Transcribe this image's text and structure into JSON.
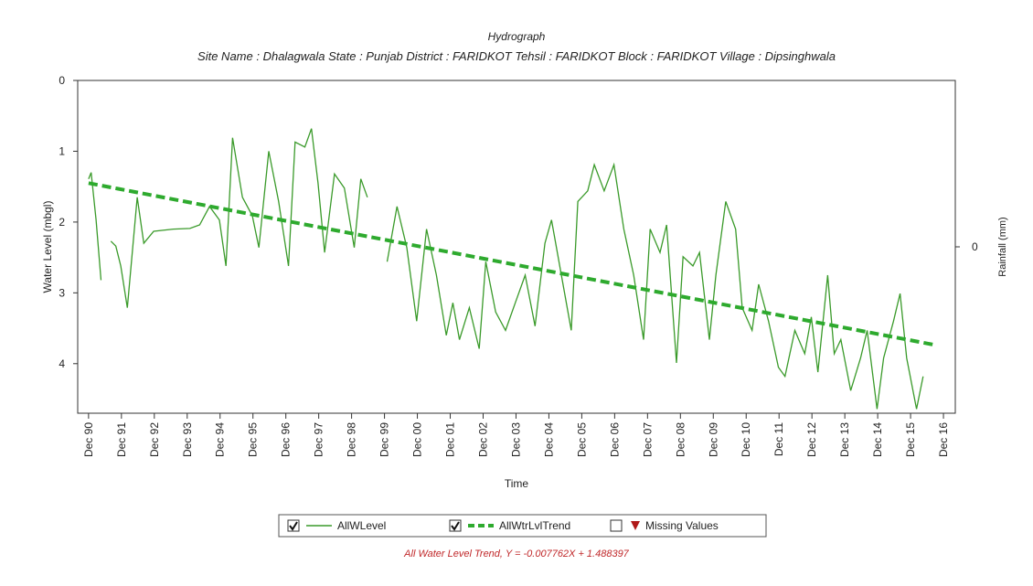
{
  "chart_data": {
    "type": "line",
    "title": "Hydrograph",
    "subtitle": "Site Name : Dhalagwala State : Punjab District : FARIDKOT Tehsil : FARIDKOT Block : FARIDKOT Village : Dipsinghwala",
    "x_label": "Time",
    "y_label": "Water Level (mbgl)",
    "y2_label": "Rainfall (mm)",
    "xlim": [
      1990.59,
      2017.28
    ],
    "xticks": [
      {
        "value": 1990.92,
        "label": "Dec 90"
      },
      {
        "value": 1991.92,
        "label": "Dec 91"
      },
      {
        "value": 1992.92,
        "label": "Dec 92"
      },
      {
        "value": 1993.92,
        "label": "Dec 93"
      },
      {
        "value": 1994.92,
        "label": "Dec 94"
      },
      {
        "value": 1995.92,
        "label": "Dec 95"
      },
      {
        "value": 1996.92,
        "label": "Dec 96"
      },
      {
        "value": 1997.92,
        "label": "Dec 97"
      },
      {
        "value": 1998.92,
        "label": "Dec 98"
      },
      {
        "value": 1999.92,
        "label": "Dec 99"
      },
      {
        "value": 2000.92,
        "label": "Dec 00"
      },
      {
        "value": 2001.92,
        "label": "Dec 01"
      },
      {
        "value": 2002.92,
        "label": "Dec 02"
      },
      {
        "value": 2003.92,
        "label": "Dec 03"
      },
      {
        "value": 2004.92,
        "label": "Dec 04"
      },
      {
        "value": 2005.92,
        "label": "Dec 05"
      },
      {
        "value": 2006.92,
        "label": "Dec 06"
      },
      {
        "value": 2007.92,
        "label": "Dec 07"
      },
      {
        "value": 2008.92,
        "label": "Dec 08"
      },
      {
        "value": 2009.92,
        "label": "Dec 09"
      },
      {
        "value": 2010.92,
        "label": "Dec 10"
      },
      {
        "value": 2011.92,
        "label": "Dec 11"
      },
      {
        "value": 2012.92,
        "label": "Dec 12"
      },
      {
        "value": 2013.92,
        "label": "Dec 13"
      },
      {
        "value": 2014.92,
        "label": "Dec 14"
      },
      {
        "value": 2015.92,
        "label": "Dec 15"
      },
      {
        "value": 2016.92,
        "label": "Dec 16"
      }
    ],
    "ylim": [
      0,
      4.7
    ],
    "yticks": [
      0,
      1,
      2,
      3,
      4
    ],
    "y_inverted": true,
    "y2lim": [
      -1,
      1
    ],
    "y2ticks": [
      0
    ],
    "series": [
      {
        "name": "AllWLevel",
        "color": "#3a9a2a",
        "dashed": false,
        "x": [
          1990.92,
          1991.0,
          1991.15,
          1991.3,
          1991.45,
          1991.6,
          1991.75,
          1991.9,
          1992.1,
          1992.4,
          1992.6,
          1992.9,
          1993.5,
          1994.0,
          1994.3,
          1994.6,
          1994.9,
          1995.1,
          1995.3,
          1995.6,
          1995.9,
          1996.1,
          1996.4,
          1996.7,
          1997.0,
          1997.2,
          1997.5,
          1997.7,
          1997.9,
          1998.1,
          1998.4,
          1998.7,
          1999.0,
          1999.2,
          1999.4,
          1999.55,
          2000.0,
          2000.3,
          2000.6,
          2000.9,
          2001.2,
          2001.5,
          2001.8,
          2002.0,
          2002.2,
          2002.5,
          2002.8,
          2003.0,
          2003.3,
          2003.6,
          2003.9,
          2004.2,
          2004.5,
          2004.8,
          2005.0,
          2005.3,
          2005.6,
          2005.8,
          2006.1,
          2006.3,
          2006.6,
          2006.9,
          2007.2,
          2007.5,
          2007.8,
          2008.0,
          2008.3,
          2008.5,
          2008.8,
          2009.0,
          2009.3,
          2009.5,
          2009.8,
          2010.0,
          2010.3,
          2010.6,
          2010.8,
          2011.1,
          2011.3,
          2011.6,
          2011.9,
          2012.1,
          2012.4,
          2012.7,
          2012.9,
          2013.1,
          2013.4,
          2013.6,
          2013.8,
          2014.1,
          2014.4,
          2014.6,
          2014.9,
          2015.1,
          2015.4,
          2015.6,
          2015.8,
          2016.1,
          2016.3
        ],
        "values": [
          1.39,
          1.3,
          1.97,
          2.82,
          null,
          2.27,
          2.34,
          2.62,
          3.21,
          1.65,
          2.3,
          2.13,
          2.1,
          2.09,
          2.04,
          1.78,
          1.97,
          2.62,
          0.81,
          1.65,
          1.91,
          2.36,
          1.0,
          1.71,
          2.62,
          0.87,
          0.94,
          0.68,
          1.45,
          2.43,
          1.32,
          1.52,
          2.36,
          1.39,
          1.65,
          null,
          2.56,
          1.78,
          2.36,
          3.4,
          2.1,
          2.75,
          3.6,
          3.14,
          3.66,
          3.21,
          3.79,
          2.56,
          3.27,
          3.53,
          3.14,
          2.75,
          3.47,
          2.3,
          1.97,
          2.75,
          3.53,
          1.71,
          1.56,
          1.19,
          1.56,
          1.19,
          2.1,
          2.75,
          3.66,
          2.1,
          2.43,
          2.04,
          3.99,
          2.49,
          2.62,
          2.43,
          3.66,
          2.75,
          1.71,
          2.1,
          3.21,
          3.53,
          2.88,
          3.4,
          4.05,
          4.18,
          3.53,
          3.86,
          3.34,
          4.12,
          2.75,
          3.86,
          3.66,
          4.38,
          3.92,
          3.53,
          4.64,
          3.92,
          3.4,
          3.01,
          3.92,
          4.64,
          4.18
        ]
      },
      {
        "name": "AllWtrLvlTrend",
        "color": "#2eaa2e",
        "dashed": true,
        "x": [
          1990.92,
          2016.6
        ],
        "values": [
          1.45,
          3.73
        ]
      }
    ],
    "legend": [
      "AllWLevel",
      "AllWtrLvlTrend",
      "Missing Values"
    ],
    "missing_color": "#b01818",
    "footnote": "All Water Level Trend, Y = -0.007762X + 1.488397"
  }
}
